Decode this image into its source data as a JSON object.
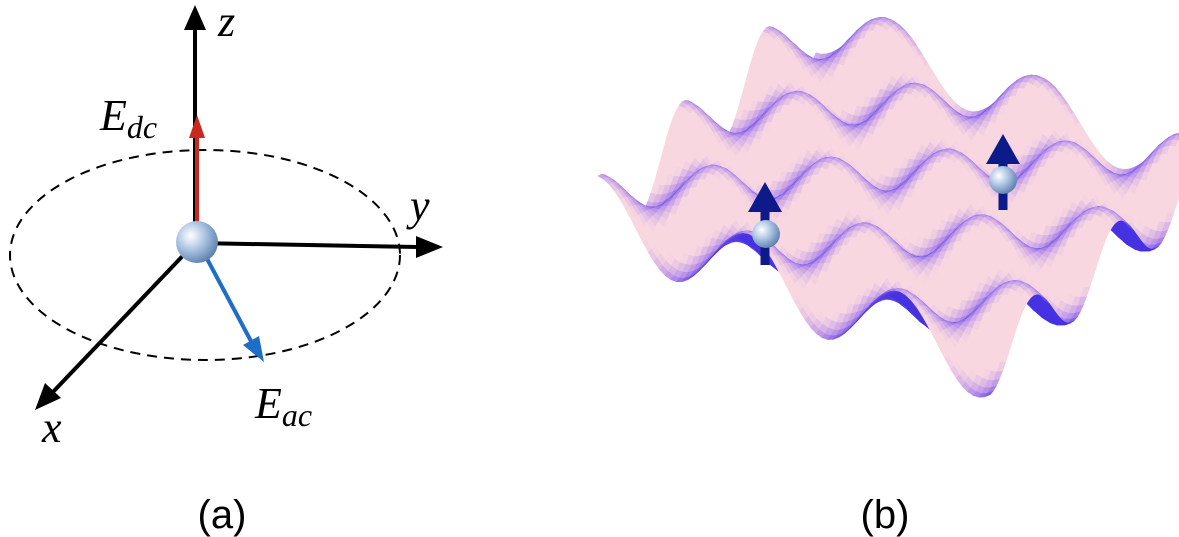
{
  "panel_a": {
    "axes": {
      "z": "z",
      "y": "y",
      "x": "x"
    },
    "e_dc": {
      "base": "E",
      "sub": "dc"
    },
    "e_ac": {
      "base": "E",
      "sub": "ac"
    },
    "caption": "(a)"
  },
  "panel_b": {
    "caption": "(b)"
  }
}
